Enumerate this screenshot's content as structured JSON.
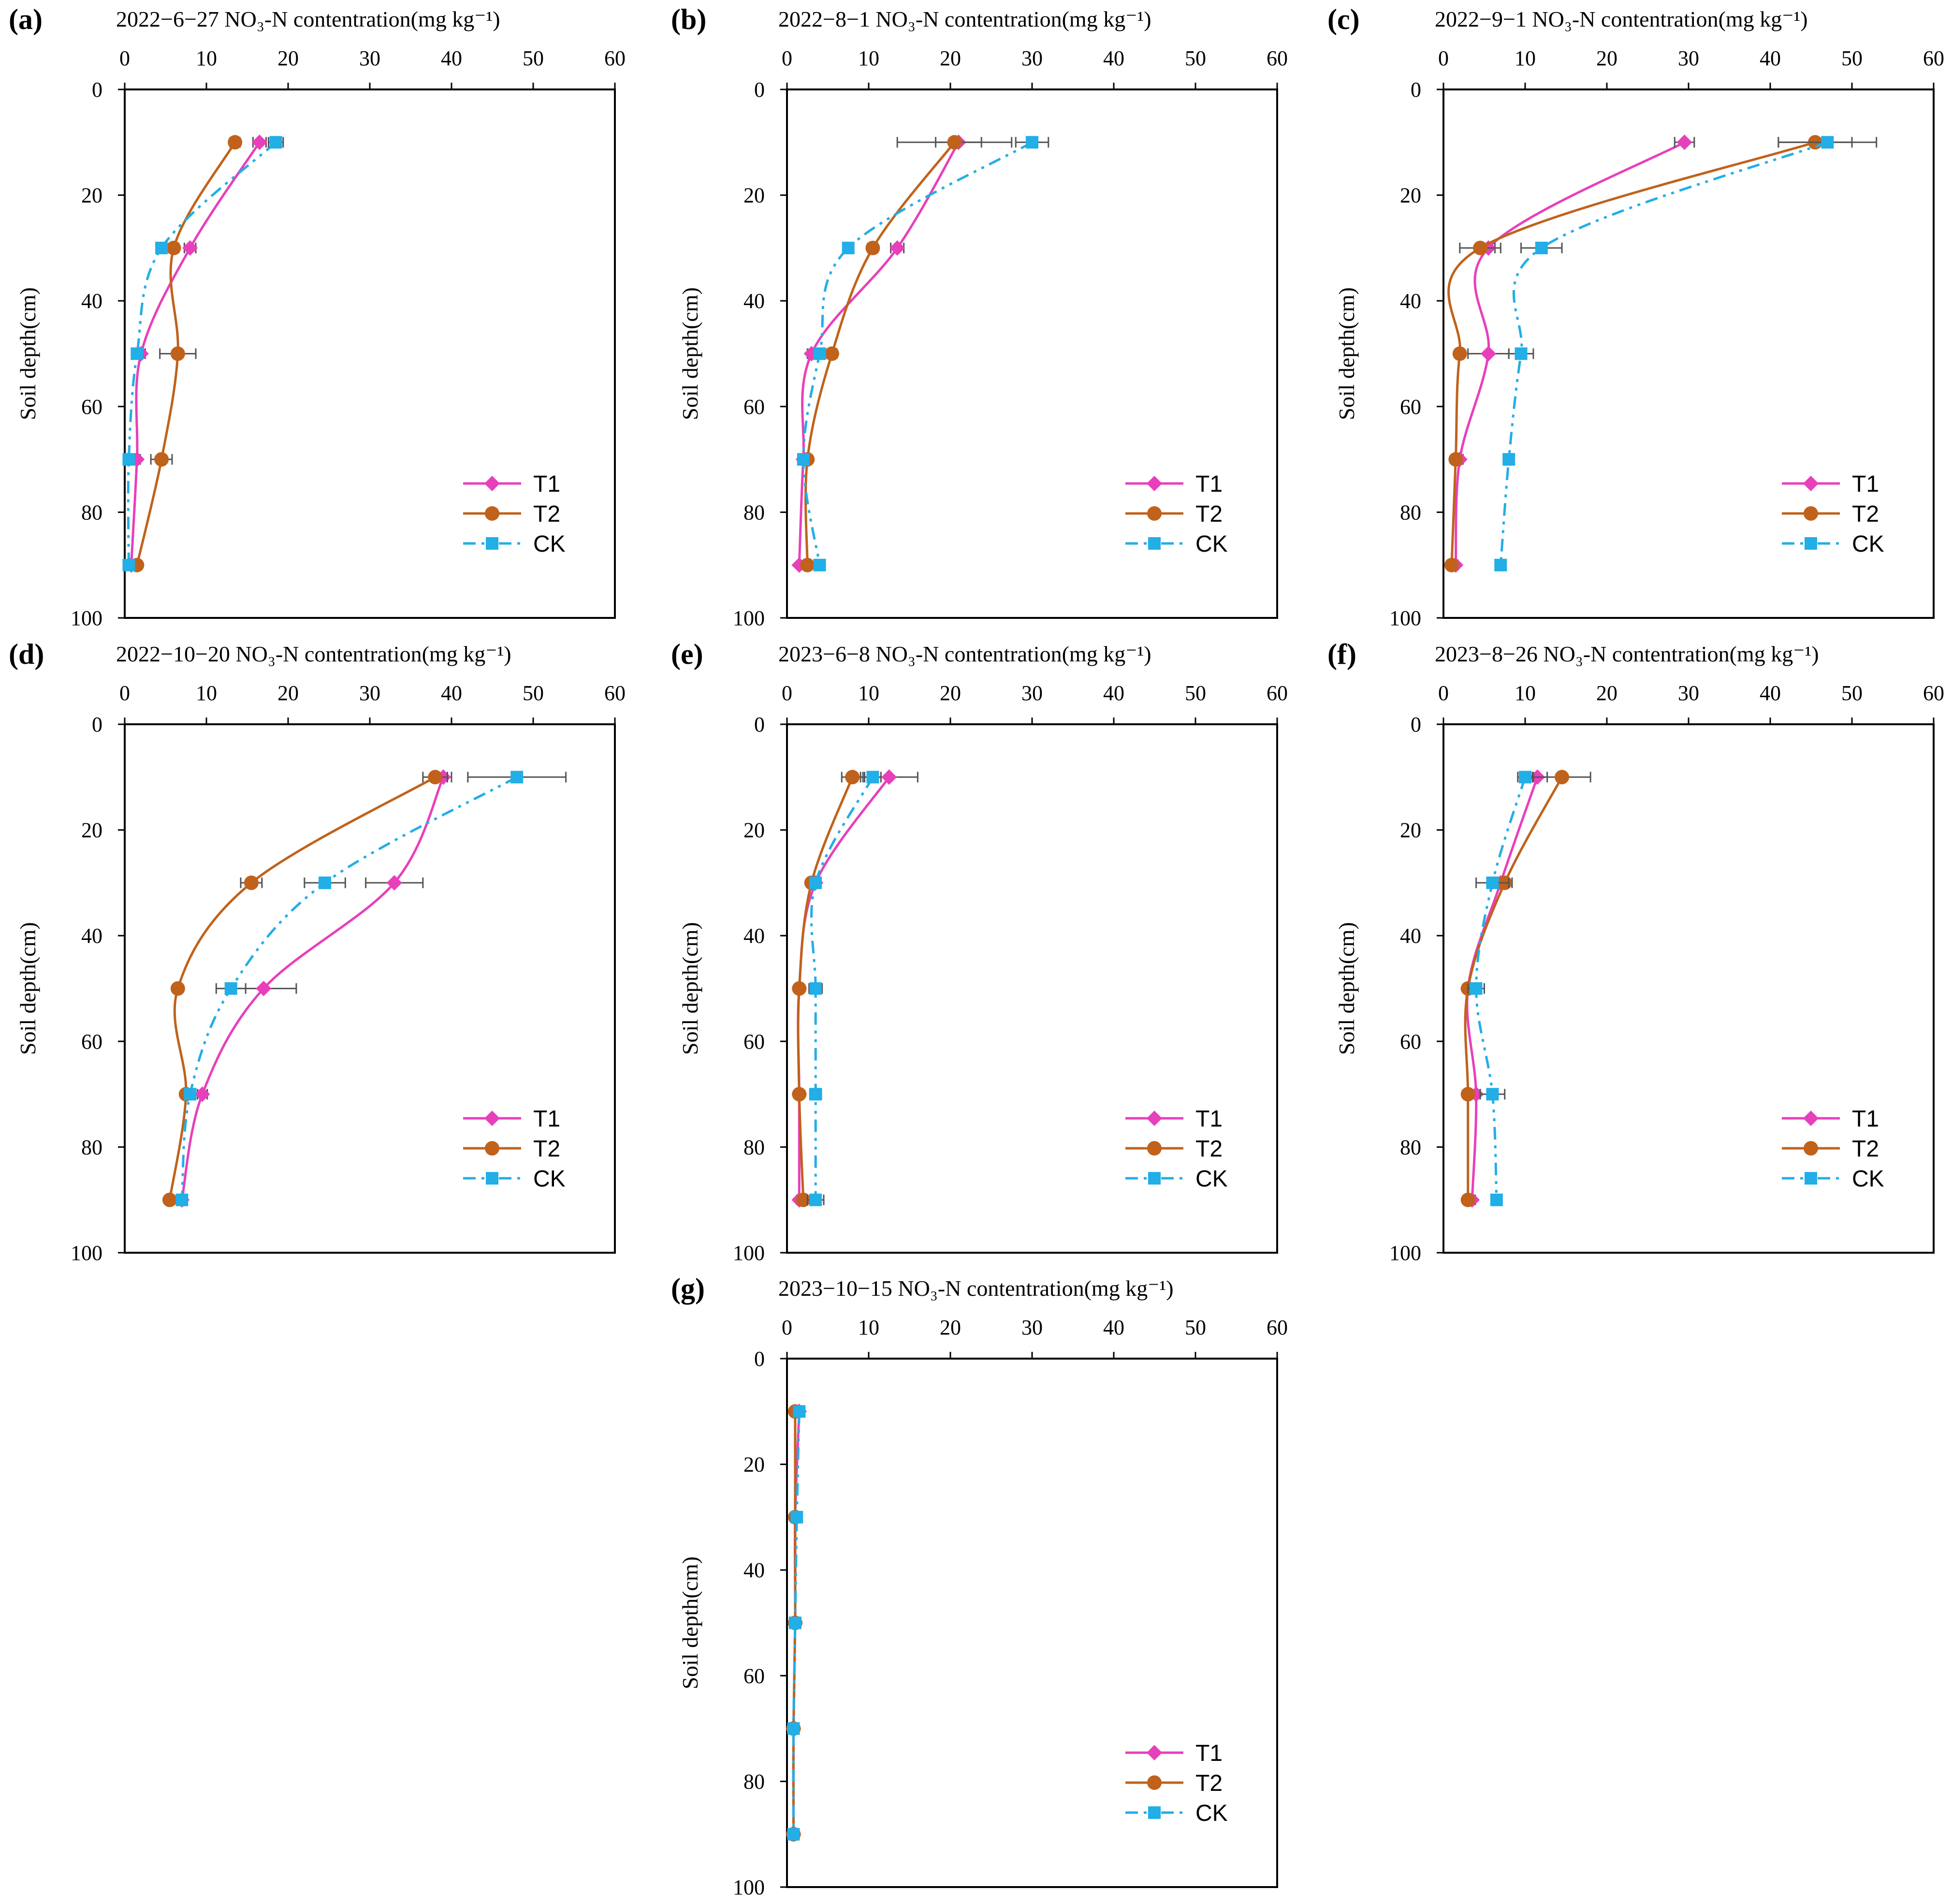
{
  "figure": {
    "depth_label": "Soil depth(cm)",
    "colors": {
      "T1": "#E83FBB",
      "T2": "#C0621B",
      "CK": "#22AEE6",
      "axis": "#000000",
      "errorbar": "#555555"
    },
    "legend": [
      "T1",
      "T2",
      "CK"
    ]
  },
  "chart_data": [
    {
      "type": "line",
      "panel": "(a)",
      "title": "2022−6−27 NO₃-N contentration(mg kg⁻¹)",
      "xlim": [
        0,
        60
      ],
      "ylim": [
        0,
        100
      ],
      "x_ticks": [
        "0",
        "10",
        "20",
        "30",
        "40",
        "50",
        "60"
      ],
      "y_ticks": [
        "0",
        "20",
        "40",
        "60",
        "80",
        "100"
      ],
      "xlabel": "NO3-N contentration(mg kg-1)",
      "ylabel": "Soil depth(cm)",
      "depths": [
        10,
        30,
        50,
        70,
        90
      ],
      "series": [
        {
          "name": "T1",
          "values": [
            16.5,
            8.0,
            2.0,
            1.5,
            0.8
          ],
          "err": [
            0.8,
            0.7,
            0.5,
            0.4,
            0.2
          ]
        },
        {
          "name": "T2",
          "values": [
            13.5,
            6.0,
            6.5,
            4.5,
            1.5
          ],
          "err": [
            0.6,
            0.6,
            2.2,
            1.3,
            0.3
          ]
        },
        {
          "name": "CK",
          "values": [
            18.5,
            4.5,
            1.5,
            0.5,
            0.5
          ],
          "err": [
            0.9,
            0.5,
            0.3,
            0.2,
            0.1
          ]
        }
      ]
    },
    {
      "type": "line",
      "panel": "(b)",
      "title": "2022−8−1 NO₃-N contentration(mg kg⁻¹)",
      "xlim": [
        0,
        60
      ],
      "ylim": [
        0,
        100
      ],
      "x_ticks": [
        "0",
        "10",
        "20",
        "30",
        "40",
        "50",
        "60"
      ],
      "y_ticks": [
        "0",
        "20",
        "40",
        "60",
        "80",
        "100"
      ],
      "xlabel": "NO3-N contentration(mg kg-1)",
      "ylabel": "Soil depth(cm)",
      "depths": [
        10,
        30,
        50,
        70,
        90
      ],
      "series": [
        {
          "name": "T1",
          "values": [
            21.0,
            13.5,
            3.0,
            2.0,
            1.5
          ],
          "err": [
            2.8,
            0.8,
            0.5,
            0.3,
            0.2
          ]
        },
        {
          "name": "T2",
          "values": [
            20.5,
            10.5,
            5.5,
            2.5,
            2.5
          ],
          "err": [
            7.0,
            0.6,
            0.6,
            0.4,
            0.4
          ]
        },
        {
          "name": "CK",
          "values": [
            30.0,
            7.5,
            4.0,
            2.0,
            4.0
          ],
          "err": [
            2.0,
            0.5,
            0.5,
            0.3,
            0.5
          ]
        }
      ]
    },
    {
      "type": "line",
      "panel": "(c)",
      "title": "2022−9−1 NO₃-N contentration(mg kg⁻¹)",
      "xlim": [
        0,
        60
      ],
      "ylim": [
        0,
        100
      ],
      "x_ticks": [
        "0",
        "10",
        "20",
        "30",
        "40",
        "50",
        "60"
      ],
      "y_ticks": [
        "0",
        "20",
        "40",
        "60",
        "80",
        "100"
      ],
      "xlabel": "NO3-N contentration(mg kg-1)",
      "ylabel": "Soil depth(cm)",
      "depths": [
        10,
        30,
        50,
        70,
        90
      ],
      "series": [
        {
          "name": "T1",
          "values": [
            29.5,
            5.5,
            5.5,
            2.0,
            1.5
          ],
          "err": [
            1.2,
            0.8,
            2.5,
            0.4,
            0.3
          ]
        },
        {
          "name": "T2",
          "values": [
            45.5,
            4.5,
            2.0,
            1.5,
            1.0
          ],
          "err": [
            4.5,
            2.5,
            0.5,
            0.4,
            0.2
          ]
        },
        {
          "name": "CK",
          "values": [
            47.0,
            12.0,
            9.5,
            8.0,
            7.0
          ],
          "err": [
            6.0,
            2.5,
            1.5,
            0.6,
            0.5
          ]
        }
      ]
    },
    {
      "type": "line",
      "panel": "(d)",
      "title": "2022−10−20 NO₃-N contentration(mg kg⁻¹)",
      "xlim": [
        0,
        60
      ],
      "ylim": [
        0,
        100
      ],
      "x_ticks": [
        "0",
        "10",
        "20",
        "30",
        "40",
        "50",
        "60"
      ],
      "y_ticks": [
        "0",
        "20",
        "40",
        "60",
        "80",
        "100"
      ],
      "xlabel": "NO3-N contentration(mg kg-1)",
      "ylabel": "Soil depth(cm)",
      "depths": [
        10,
        30,
        50,
        70,
        90
      ],
      "series": [
        {
          "name": "T1",
          "values": [
            39.0,
            33.0,
            17.0,
            9.5,
            7.0
          ],
          "err": [
            1.0,
            3.5,
            4.0,
            0.6,
            0.4
          ]
        },
        {
          "name": "T2",
          "values": [
            38.0,
            15.5,
            6.5,
            7.5,
            5.5
          ],
          "err": [
            1.5,
            1.3,
            0.5,
            0.5,
            0.4
          ]
        },
        {
          "name": "CK",
          "values": [
            48.0,
            24.5,
            13.0,
            8.0,
            7.0
          ],
          "err": [
            6.0,
            2.5,
            1.8,
            0.6,
            0.5
          ]
        }
      ]
    },
    {
      "type": "line",
      "panel": "(e)",
      "title": "2023−6−8 NO₃-N contentration(mg kg⁻¹)",
      "xlim": [
        0,
        60
      ],
      "ylim": [
        0,
        100
      ],
      "x_ticks": [
        "0",
        "10",
        "20",
        "30",
        "40",
        "50",
        "60"
      ],
      "y_ticks": [
        "0",
        "20",
        "40",
        "60",
        "80",
        "100"
      ],
      "xlabel": "NO3-N contentration(mg kg-1)",
      "ylabel": "Soil depth(cm)",
      "depths": [
        10,
        30,
        50,
        70,
        90
      ],
      "series": [
        {
          "name": "T1",
          "values": [
            12.5,
            3.5,
            1.5,
            1.5,
            1.5
          ],
          "err": [
            3.5,
            0.6,
            0.3,
            0.3,
            0.3
          ]
        },
        {
          "name": "T2",
          "values": [
            8.0,
            3.0,
            1.5,
            1.5,
            2.0
          ],
          "err": [
            1.3,
            0.5,
            0.3,
            0.3,
            0.3
          ]
        },
        {
          "name": "CK",
          "values": [
            10.5,
            3.5,
            3.5,
            3.5,
            3.5
          ],
          "err": [
            1.0,
            0.6,
            0.8,
            0.7,
            1.0
          ]
        }
      ]
    },
    {
      "type": "line",
      "panel": "(f)",
      "title": "2023−8−26 NO₃-N contentration(mg kg⁻¹)",
      "xlim": [
        0,
        60
      ],
      "ylim": [
        0,
        100
      ],
      "x_ticks": [
        "0",
        "10",
        "20",
        "30",
        "40",
        "50",
        "60"
      ],
      "y_ticks": [
        "0",
        "20",
        "40",
        "60",
        "80",
        "100"
      ],
      "xlabel": "NO3-N contentration(mg kg-1)",
      "ylabel": "Soil depth(cm)",
      "depths": [
        10,
        30,
        50,
        70,
        90
      ],
      "series": [
        {
          "name": "T1",
          "values": [
            11.5,
            7.0,
            3.0,
            4.0,
            3.5
          ],
          "err": [
            1.2,
            0.9,
            0.4,
            0.5,
            0.4
          ]
        },
        {
          "name": "T2",
          "values": [
            14.5,
            7.5,
            3.0,
            3.0,
            3.0
          ],
          "err": [
            3.5,
            0.9,
            0.4,
            0.4,
            0.3
          ]
        },
        {
          "name": "CK",
          "values": [
            10.0,
            6.0,
            4.0,
            6.0,
            6.5
          ],
          "err": [
            0.9,
            2.0,
            1.0,
            1.5,
            0.6
          ]
        }
      ]
    },
    {
      "type": "line",
      "panel": "(g)",
      "title": "2023−10−15 NO₃-N contentration(mg kg⁻¹)",
      "xlim": [
        0,
        60
      ],
      "ylim": [
        0,
        100
      ],
      "x_ticks": [
        "0",
        "10",
        "20",
        "30",
        "40",
        "50",
        "60"
      ],
      "y_ticks": [
        "0",
        "20",
        "40",
        "60",
        "80",
        "100"
      ],
      "xlabel": "NO3-N contentration(mg kg-1)",
      "ylabel": "Soil depth(cm)",
      "depths": [
        10,
        30,
        50,
        70,
        90
      ],
      "series": [
        {
          "name": "T1",
          "values": [
            1.5,
            1.0,
            1.0,
            0.8,
            0.8
          ],
          "err": [
            0.2,
            0.2,
            0.2,
            0.1,
            0.1
          ]
        },
        {
          "name": "T2",
          "values": [
            1.0,
            1.0,
            1.0,
            0.8,
            0.8
          ],
          "err": [
            0.2,
            0.2,
            0.2,
            0.1,
            0.1
          ]
        },
        {
          "name": "CK",
          "values": [
            1.5,
            1.2,
            1.0,
            0.8,
            0.8
          ],
          "err": [
            0.2,
            0.2,
            0.2,
            0.1,
            0.1
          ]
        }
      ]
    }
  ]
}
